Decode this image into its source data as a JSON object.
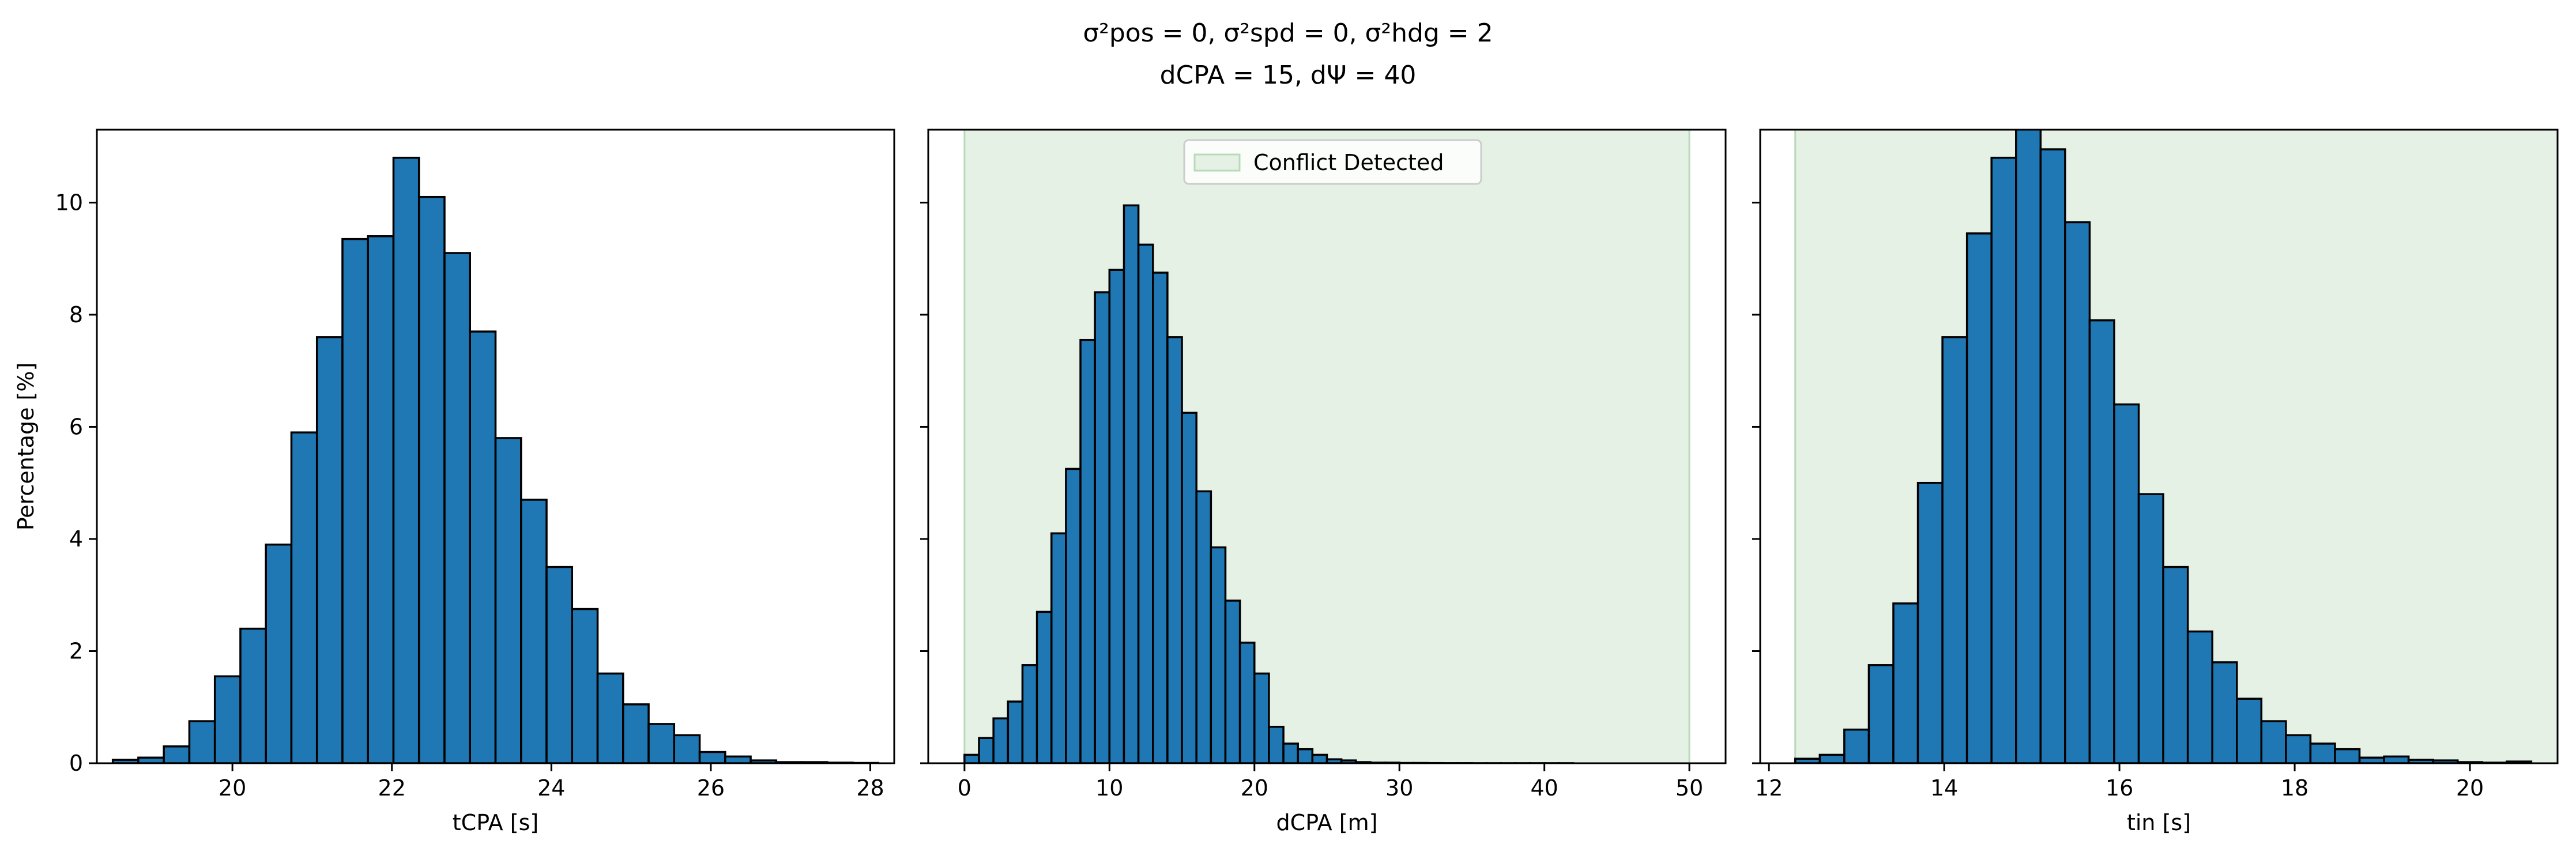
{
  "figure": {
    "title_line1": "σ²pos = 0, σ²spd = 0, σ²hdg = 2",
    "title_line2": "dCPA = 15, dΨ = 40"
  },
  "chart_data": [
    {
      "type": "bar",
      "xlabel": "tCPA [s]",
      "ylabel": "Percentage [%]",
      "xlim": [
        18.3,
        28.3
      ],
      "ylim": [
        0,
        11.3
      ],
      "xticks": [
        20,
        22,
        24,
        26,
        28
      ],
      "yticks": [
        0,
        2,
        4,
        6,
        8,
        10
      ],
      "bin_left": 18.5,
      "bin_width": 0.32,
      "values": [
        0.06,
        0.1,
        0.3,
        0.75,
        1.55,
        2.4,
        3.9,
        5.9,
        7.6,
        9.35,
        9.4,
        10.8,
        10.1,
        9.1,
        7.7,
        5.8,
        4.7,
        3.5,
        2.75,
        1.6,
        1.05,
        0.7,
        0.5,
        0.2,
        0.12,
        0.05,
        0.02,
        0.02,
        0.01,
        0.005
      ]
    },
    {
      "type": "bar",
      "xlabel": "dCPA [m]",
      "ylabel": "",
      "xlim": [
        -2.5,
        52.5
      ],
      "ylim": [
        0,
        11.3
      ],
      "xticks": [
        0,
        10,
        20,
        30,
        40,
        50
      ],
      "yticks": [
        0,
        2,
        4,
        6,
        8,
        10
      ],
      "shaded_region": [
        0,
        50
      ],
      "legend": {
        "label": "Conflict Detected",
        "placement": "upper center"
      },
      "bin_left": 0,
      "bin_width": 1.0,
      "values": [
        0.15,
        0.45,
        0.8,
        1.1,
        1.75,
        2.7,
        4.1,
        5.25,
        7.55,
        8.4,
        8.8,
        9.95,
        9.25,
        8.75,
        7.6,
        6.25,
        4.85,
        3.85,
        2.9,
        2.15,
        1.6,
        0.65,
        0.35,
        0.25,
        0.15,
        0.07,
        0.05,
        0.02,
        0.01,
        0.01,
        0.005,
        0.005,
        0.003,
        0.002,
        0.002,
        0.001,
        0.001,
        0.001,
        0.001,
        0.001,
        0.001,
        0.001
      ],
      "series_offset": 0.0
    },
    {
      "type": "bar",
      "xlabel": "tin [s]",
      "ylabel": "",
      "xlim": [
        11.9,
        21.0
      ],
      "ylim": [
        0,
        11.3
      ],
      "xticks": [
        12,
        14,
        16,
        18,
        20
      ],
      "yticks": [
        0,
        2,
        4,
        6,
        8,
        10
      ],
      "shaded_region": [
        12.3,
        23
      ],
      "bin_left": 12.3,
      "bin_width": 0.28,
      "values": [
        0.08,
        0.15,
        0.6,
        1.75,
        2.85,
        5.0,
        7.6,
        9.45,
        10.8,
        11.4,
        10.95,
        9.65,
        7.9,
        6.4,
        4.8,
        3.5,
        2.35,
        1.8,
        1.15,
        0.75,
        0.5,
        0.35,
        0.25,
        0.1,
        0.12,
        0.06,
        0.05,
        0.02,
        0.01,
        0.03
      ]
    }
  ],
  "style": {
    "bar_fill": "#1f77b4",
    "bar_edge": "#000000",
    "shade_fill": "#e5f1e5",
    "shade_edge": "#b8dab8"
  }
}
